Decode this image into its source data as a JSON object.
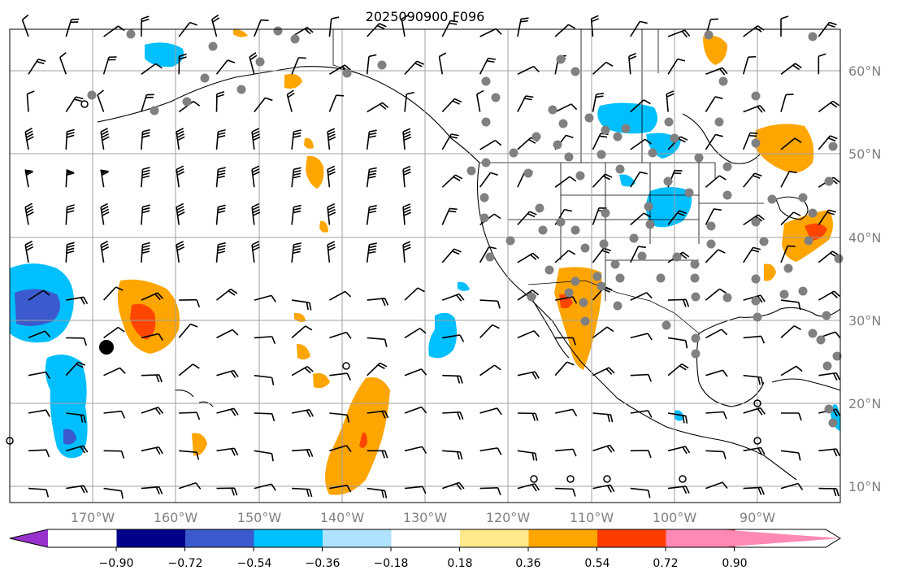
{
  "title": "2025090900 F096",
  "lat_labels": [
    "60°N",
    "50°N",
    "40°N",
    "30°N",
    "20°N",
    "10°N"
  ],
  "lon_labels": [
    "170°W",
    "160°W",
    "150°W",
    "140°W",
    "130°W",
    "120°W",
    "110°W",
    "100°W",
    "90°W"
  ],
  "colorbar": {
    "tick_labels": [
      "−0.90",
      "−0.72",
      "−0.54",
      "−0.36",
      "−0.18",
      "0.18",
      "0.36",
      "0.54",
      "0.72",
      "0.90"
    ],
    "colors": [
      "#9932cc",
      "#00008b",
      "#3a5acd",
      "#00bfff",
      "#aee2ff",
      "#ffffff",
      "#ffe98a",
      "#ffa500",
      "#ff3c00",
      "#b22222",
      "#ff88b4"
    ]
  },
  "colors": {
    "neg_light": "#00bfff",
    "neg_mid": "#3a5acd",
    "pos_light": "#ffa500",
    "pos_mid": "#ff4500",
    "station": "#808080",
    "grid": "#a0a0a0"
  }
}
